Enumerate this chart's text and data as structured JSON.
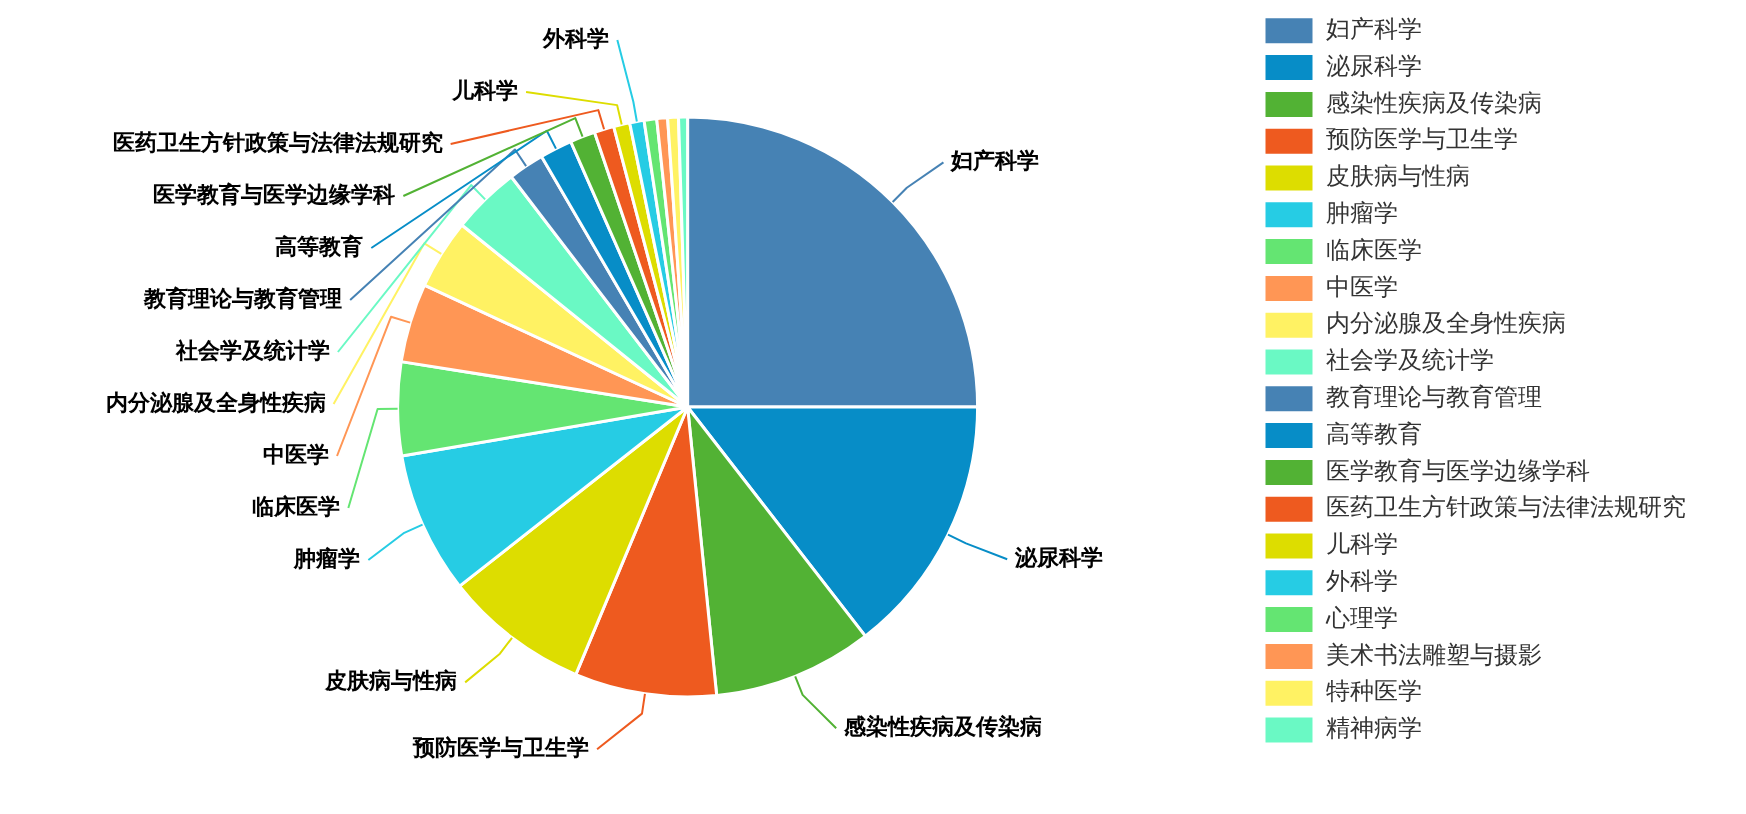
{
  "chart_data": {
    "type": "pie",
    "categories": [
      "妇产科学",
      "泌尿科学",
      "感染性疾病及传染病",
      "预防医学与卫生学",
      "皮肤病与性病",
      "肿瘤学",
      "临床医学",
      "中医学",
      "内分泌腺及全身性疾病",
      "社会学及统计学",
      "教育理论与教育管理",
      "高等教育",
      "医学教育与医学边缘学科",
      "医药卫生方针政策与法律法规研究",
      "儿科学",
      "外科学",
      "心理学",
      "美术书法雕塑与摄影",
      "特种医学",
      "精神病学"
    ],
    "values": [
      25,
      14.5,
      8.9,
      7.9,
      8.1,
      7.9,
      5.2,
      4.4,
      3.9,
      3.8,
      2.0,
      1.8,
      1.4,
      1.1,
      0.9,
      0.8,
      0.7,
      0.6,
      0.6,
      0.5
    ],
    "colors": [
      "#4682b4",
      "#078dc7",
      "#52b234",
      "#ee5a1f",
      "#dddd00",
      "#26cce4",
      "#64e572",
      "#ff9655",
      "#fff263",
      "#6af9c4",
      "#4682b4",
      "#078dc7",
      "#52b234",
      "#ee5a1f",
      "#dddd00",
      "#26cce4",
      "#64e572",
      "#ff9655",
      "#fff263",
      "#6af9c4"
    ],
    "legend": "top right"
  }
}
